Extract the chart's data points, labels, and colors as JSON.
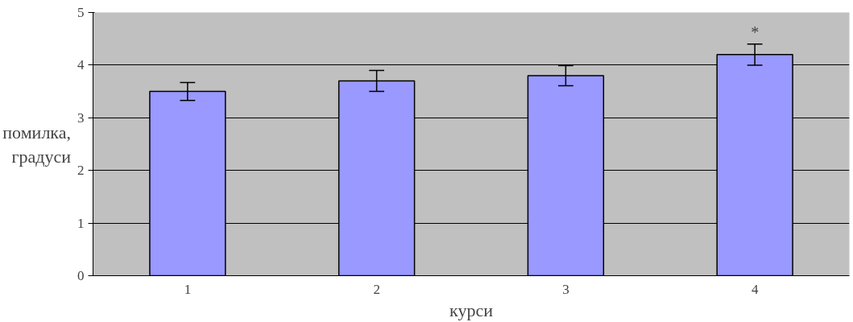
{
  "chart_data": {
    "type": "bar",
    "xlabel": "курси",
    "ylabel": "помилка, градуси",
    "categories": [
      "1",
      "2",
      "3",
      "4"
    ],
    "values": [
      3.5,
      3.7,
      3.8,
      4.2
    ],
    "errors": [
      0.17,
      0.2,
      0.19,
      0.2
    ],
    "color": "#9999ff",
    "ylim": [
      0,
      5
    ],
    "yticks": [
      0,
      1,
      2,
      3,
      4,
      5
    ],
    "grid": "y",
    "annotations": [
      "*"
    ]
  }
}
